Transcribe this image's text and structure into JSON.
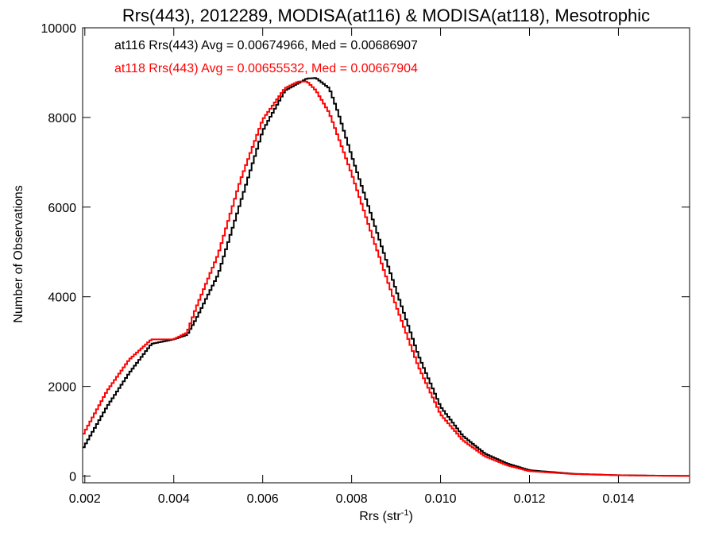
{
  "chart_data": {
    "type": "line",
    "title": "Rrs(443), 2012289, MODISA(at116) & MODISA(at118), Mesotrophic",
    "xlabel": "Rrs (str",
    "xlabel_sup": "-1",
    "xlabel_end": ")",
    "ylabel": "Number of Observations",
    "xlim": [
      0.00195,
      0.0156
    ],
    "ylim": [
      -150,
      10000
    ],
    "xticks": [
      0.002,
      0.004,
      0.006,
      0.008,
      0.01,
      0.012,
      0.014
    ],
    "xtick_labels": [
      "0.002",
      "0.004",
      "0.006",
      "0.008",
      "0.010",
      "0.012",
      "0.014"
    ],
    "yticks": [
      0,
      2000,
      4000,
      6000,
      8000,
      10000
    ],
    "ytick_labels": [
      "0",
      "2000",
      "4000",
      "6000",
      "8000",
      "10000"
    ],
    "grid": false,
    "series": [
      {
        "name": "at116",
        "color": "#000000",
        "annotation": "at116 Rrs(443) Avg = 0.00674966, Med = 0.00686907",
        "x": [
          0.00195,
          0.0025,
          0.003,
          0.0035,
          0.004,
          0.0043,
          0.0045,
          0.005,
          0.0055,
          0.006,
          0.0065,
          0.007,
          0.0072,
          0.0075,
          0.0077,
          0.008,
          0.0085,
          0.009,
          0.0095,
          0.01,
          0.0105,
          0.011,
          0.0115,
          0.012,
          0.013,
          0.014,
          0.015,
          0.0156
        ],
        "values": [
          600,
          1550,
          2300,
          2950,
          3050,
          3150,
          3500,
          4500,
          6100,
          7700,
          8600,
          8870,
          8880,
          8650,
          8100,
          7150,
          5650,
          4150,
          2700,
          1550,
          900,
          500,
          280,
          130,
          50,
          20,
          8,
          5
        ]
      },
      {
        "name": "at118",
        "color": "#ff0000",
        "annotation": "at118 Rrs(443) Avg = 0.00655532, Med = 0.00667904",
        "x": [
          0.00195,
          0.0025,
          0.003,
          0.0035,
          0.004,
          0.0043,
          0.0045,
          0.005,
          0.0055,
          0.006,
          0.0065,
          0.0068,
          0.007,
          0.0072,
          0.0075,
          0.008,
          0.0085,
          0.009,
          0.0095,
          0.01,
          0.0105,
          0.011,
          0.0115,
          0.012,
          0.013,
          0.014,
          0.015,
          0.0156
        ],
        "values": [
          900,
          1900,
          2600,
          3050,
          3050,
          3200,
          3750,
          4950,
          6600,
          7950,
          8650,
          8800,
          8800,
          8600,
          8100,
          6750,
          5250,
          3800,
          2450,
          1380,
          800,
          440,
          240,
          110,
          45,
          18,
          7,
          4
        ]
      }
    ]
  }
}
